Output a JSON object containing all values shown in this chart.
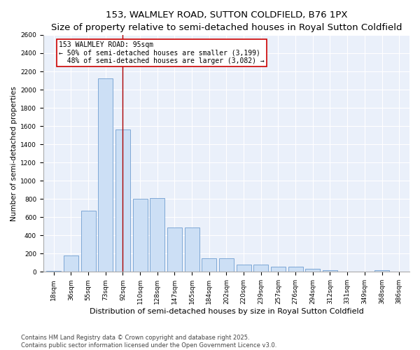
{
  "title": "153, WALMLEY ROAD, SUTTON COLDFIELD, B76 1PX",
  "subtitle": "Size of property relative to semi-detached houses in Royal Sutton Coldfield",
  "xlabel": "Distribution of semi-detached houses by size in Royal Sutton Coldfield",
  "ylabel": "Number of semi-detached properties",
  "categories": [
    "18sqm",
    "36sqm",
    "55sqm",
    "73sqm",
    "92sqm",
    "110sqm",
    "128sqm",
    "147sqm",
    "165sqm",
    "184sqm",
    "202sqm",
    "220sqm",
    "239sqm",
    "257sqm",
    "276sqm",
    "294sqm",
    "312sqm",
    "331sqm",
    "349sqm",
    "368sqm",
    "386sqm"
  ],
  "values": [
    10,
    180,
    670,
    2120,
    1560,
    800,
    810,
    490,
    490,
    150,
    150,
    80,
    80,
    55,
    60,
    30,
    15,
    5,
    5,
    20,
    5
  ],
  "bar_color": "#ccdff5",
  "bar_edge_color": "#5a8fc8",
  "vline_x": 4.0,
  "vline_color": "#aa0000",
  "annotation_title": "153 WALMLEY ROAD: 95sqm",
  "annotation_line1": "← 50% of semi-detached houses are smaller (3,199)",
  "annotation_line2": "  48% of semi-detached houses are larger (3,082) →",
  "annotation_box_color": "#cc0000",
  "ylim": [
    0,
    2600
  ],
  "yticks": [
    0,
    200,
    400,
    600,
    800,
    1000,
    1200,
    1400,
    1600,
    1800,
    2000,
    2200,
    2400,
    2600
  ],
  "footnote1": "Contains HM Land Registry data © Crown copyright and database right 2025.",
  "footnote2": "Contains public sector information licensed under the Open Government Licence v3.0.",
  "bg_color": "#eaf0fa",
  "title_fontsize": 9.5,
  "subtitle_fontsize": 8.5,
  "xlabel_fontsize": 8,
  "ylabel_fontsize": 7.5,
  "tick_fontsize": 6.5,
  "annotation_fontsize": 7,
  "footnote_fontsize": 6
}
